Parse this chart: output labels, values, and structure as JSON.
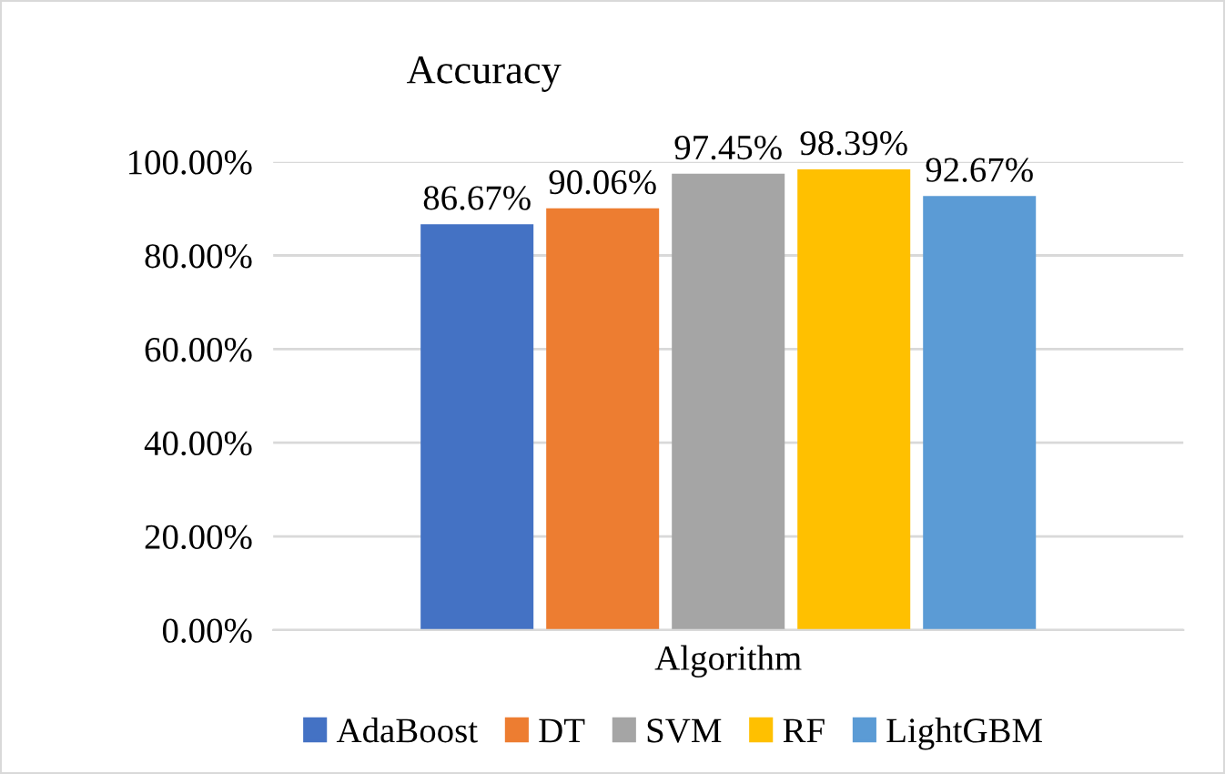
{
  "chart_data": {
    "type": "bar",
    "title": "Accuracy",
    "categories": [
      "Algorithm"
    ],
    "series": [
      {
        "name": "AdaBoost",
        "color": "#4472c4",
        "values": [
          86.67
        ],
        "value_labels": [
          "86.67%"
        ]
      },
      {
        "name": "DT",
        "color": "#ed7d31",
        "values": [
          90.06
        ],
        "value_labels": [
          "90.06%"
        ]
      },
      {
        "name": "SVM",
        "color": "#a5a5a5",
        "values": [
          97.45
        ],
        "value_labels": [
          "97.45%"
        ]
      },
      {
        "name": "RF",
        "color": "#ffc000",
        "values": [
          98.39
        ],
        "value_labels": [
          "98.39%"
        ]
      },
      {
        "name": "LightGBM",
        "color": "#5b9bd5",
        "values": [
          92.67
        ],
        "value_labels": [
          "92.67%"
        ]
      }
    ],
    "ylim": [
      0,
      100
    ],
    "yticks": [
      {
        "value": 0,
        "label": "0.00%"
      },
      {
        "value": 20,
        "label": "20.00%"
      },
      {
        "value": 40,
        "label": "40.00%"
      },
      {
        "value": 60,
        "label": "60.00%"
      },
      {
        "value": 80,
        "label": "80.00%"
      },
      {
        "value": 100,
        "label": "100.00%"
      }
    ],
    "grid": "y",
    "legend": "bottom"
  }
}
